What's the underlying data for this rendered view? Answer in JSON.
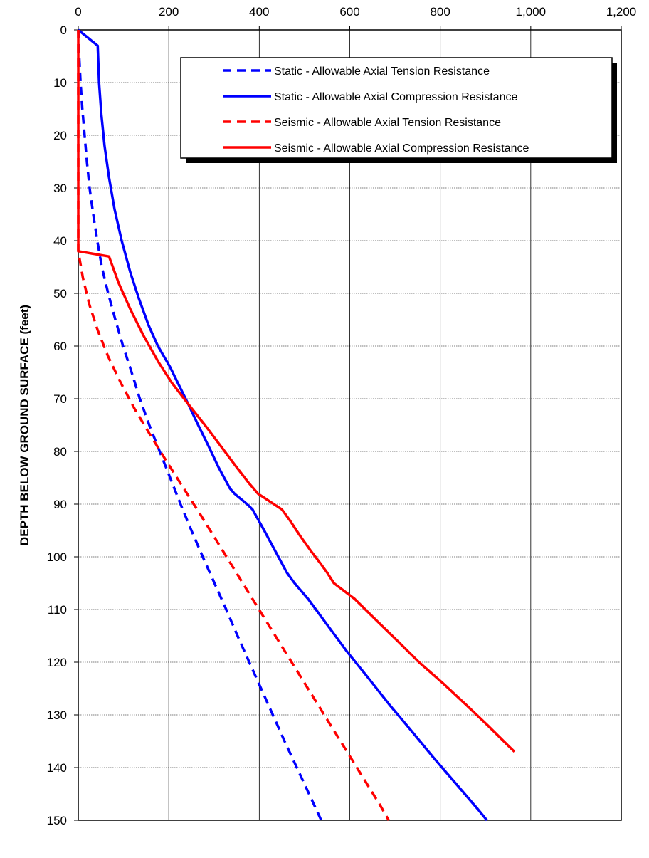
{
  "chart_data": {
    "type": "line",
    "title": "",
    "xlabel": "",
    "ylabel": "DEPTH BELOW GROUND SURFACE (feet)",
    "xlim": [
      0,
      1200
    ],
    "ylim": [
      0,
      150
    ],
    "y_inverted": true,
    "x_axis_position": "top",
    "grid": true,
    "legend_position": "top-right",
    "x_ticks": [
      "0",
      "200",
      "400",
      "600",
      "800",
      "1,000",
      "1,200"
    ],
    "y_ticks": [
      "0",
      "10",
      "20",
      "30",
      "40",
      "50",
      "60",
      "70",
      "80",
      "90",
      "100",
      "110",
      "120",
      "130",
      "140",
      "150"
    ],
    "series": [
      {
        "name": "Static - Allowable Axial Tension Resistance",
        "color": "#0000ff",
        "dash": true,
        "points": [
          [
            0,
            0
          ],
          [
            2,
            5
          ],
          [
            5,
            10
          ],
          [
            9,
            15
          ],
          [
            14,
            20
          ],
          [
            19,
            25
          ],
          [
            25,
            30
          ],
          [
            33,
            35
          ],
          [
            42,
            40
          ],
          [
            52,
            45
          ],
          [
            66,
            50
          ],
          [
            82,
            55
          ],
          [
            99,
            60
          ],
          [
            118,
            65
          ],
          [
            136,
            70
          ],
          [
            157,
            75
          ],
          [
            180,
            80
          ],
          [
            203,
            85
          ],
          [
            226,
            90
          ],
          [
            250,
            95
          ],
          [
            275,
            100
          ],
          [
            301,
            105
          ],
          [
            327,
            110
          ],
          [
            352,
            115
          ],
          [
            378,
            120
          ],
          [
            404,
            125
          ],
          [
            430,
            130
          ],
          [
            456,
            135
          ],
          [
            483,
            140
          ],
          [
            510,
            145
          ],
          [
            537,
            150
          ]
        ]
      },
      {
        "name": "Static - Allowable Axial Compression Resistance",
        "color": "#0000ff",
        "dash": false,
        "points": [
          [
            0,
            0
          ],
          [
            43,
            3
          ],
          [
            46,
            10
          ],
          [
            51,
            16
          ],
          [
            58,
            22
          ],
          [
            68,
            28
          ],
          [
            80,
            34
          ],
          [
            96,
            40
          ],
          [
            115,
            46
          ],
          [
            134,
            51
          ],
          [
            155,
            56
          ],
          [
            176,
            60
          ],
          [
            203,
            64
          ],
          [
            220,
            67
          ],
          [
            243,
            71
          ],
          [
            265,
            75
          ],
          [
            288,
            79
          ],
          [
            310,
            83
          ],
          [
            335,
            87
          ],
          [
            345,
            88
          ],
          [
            373,
            90
          ],
          [
            385,
            91
          ],
          [
            411,
            95
          ],
          [
            436,
            99
          ],
          [
            461,
            103
          ],
          [
            478,
            105
          ],
          [
            508,
            108
          ],
          [
            551,
            113
          ],
          [
            594,
            118
          ],
          [
            641,
            123
          ],
          [
            687,
            128
          ],
          [
            736,
            133
          ],
          [
            784,
            138
          ],
          [
            834,
            143
          ],
          [
            884,
            148
          ],
          [
            903,
            150
          ]
        ]
      },
      {
        "name": "Seismic - Allowable Axial Tension Resistance",
        "color": "#ff0000",
        "dash": true,
        "points": [
          [
            0,
            0
          ],
          [
            0,
            42
          ],
          [
            10,
            47
          ],
          [
            24,
            52
          ],
          [
            43,
            57
          ],
          [
            66,
            62
          ],
          [
            94,
            67
          ],
          [
            125,
            72
          ],
          [
            160,
            77
          ],
          [
            196,
            82
          ],
          [
            233,
            87
          ],
          [
            270,
            92
          ],
          [
            306,
            97
          ],
          [
            342,
            102
          ],
          [
            378,
            107
          ],
          [
            414,
            112
          ],
          [
            450,
            117
          ],
          [
            486,
            122
          ],
          [
            522,
            127
          ],
          [
            558,
            132
          ],
          [
            594,
            137
          ],
          [
            630,
            142
          ],
          [
            666,
            147
          ],
          [
            686,
            150
          ]
        ]
      },
      {
        "name": "Seismic - Allowable Axial Compression Resistance",
        "color": "#ff0000",
        "dash": false,
        "points": [
          [
            0,
            0
          ],
          [
            0,
            42
          ],
          [
            68,
            43
          ],
          [
            89,
            48
          ],
          [
            115,
            53
          ],
          [
            144,
            58
          ],
          [
            177,
            63
          ],
          [
            207,
            67
          ],
          [
            243,
            71
          ],
          [
            280,
            75
          ],
          [
            315,
            79
          ],
          [
            350,
            83
          ],
          [
            377,
            86
          ],
          [
            397,
            88
          ],
          [
            450,
            91
          ],
          [
            467,
            93
          ],
          [
            490,
            96
          ],
          [
            515,
            99
          ],
          [
            533,
            101
          ],
          [
            550,
            103
          ],
          [
            565,
            105
          ],
          [
            611,
            108
          ],
          [
            658,
            112
          ],
          [
            706,
            116
          ],
          [
            753,
            120
          ],
          [
            806,
            124
          ],
          [
            856,
            128
          ],
          [
            905,
            132
          ],
          [
            952,
            136
          ],
          [
            964,
            137
          ]
        ]
      }
    ]
  }
}
